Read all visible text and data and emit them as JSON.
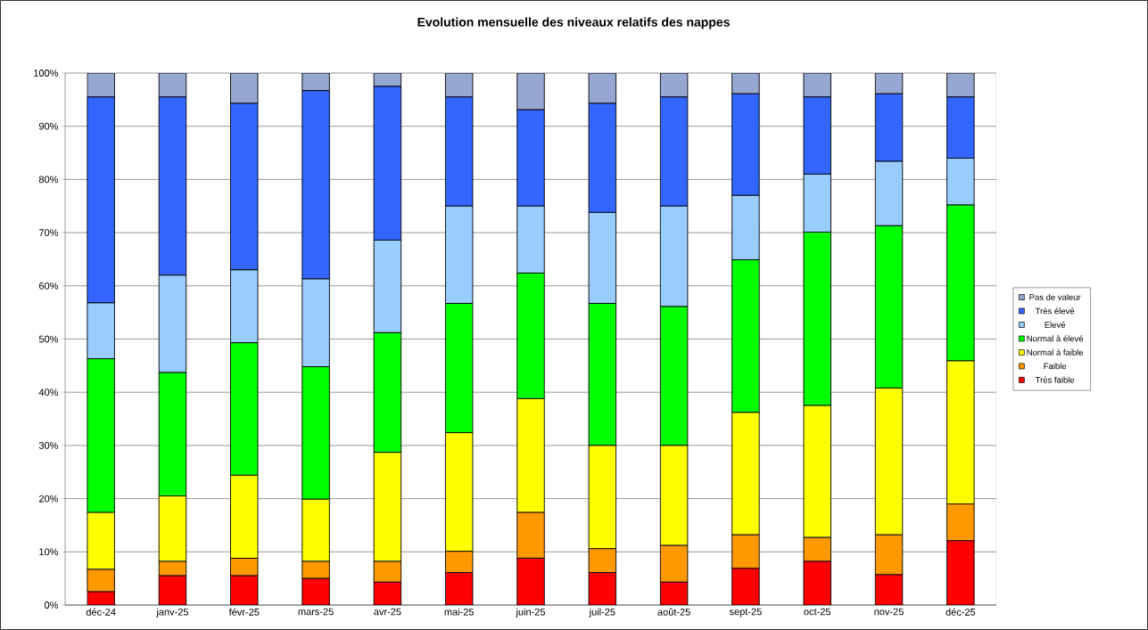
{
  "chart_data": {
    "type": "bar",
    "stacked": true,
    "title": "Evolution mensuelle des niveaux relatifs des nappes",
    "categories": [
      "déc-24",
      "janv-25",
      "févr-25",
      "mars-25",
      "avr-25",
      "mai-25",
      "juin-25",
      "juil-25",
      "août-25",
      "sept-25",
      "oct-25",
      "nov-25",
      "déc-25"
    ],
    "series": [
      {
        "name": "Très faible",
        "color": "#ff0000",
        "values": [
          2.5,
          5.5,
          5.5,
          5.0,
          4.3,
          6.1,
          8.8,
          6.1,
          4.3,
          6.9,
          8.2,
          5.7,
          12.1
        ]
      },
      {
        "name": "Faible",
        "color": "#ff9900",
        "values": [
          4.2,
          2.7,
          3.3,
          3.2,
          3.9,
          4.0,
          8.6,
          4.5,
          6.9,
          6.3,
          4.5,
          7.5,
          6.9
        ]
      },
      {
        "name": "Normal à faible",
        "color": "#ffff00",
        "values": [
          10.7,
          12.3,
          15.6,
          11.7,
          20.5,
          22.3,
          21.4,
          19.4,
          18.8,
          23.0,
          24.8,
          27.6,
          26.9
        ]
      },
      {
        "name": "Normal à élevé",
        "color": "#00ff00",
        "values": [
          28.9,
          23.2,
          24.9,
          24.9,
          22.5,
          24.3,
          23.6,
          26.7,
          26.1,
          28.7,
          32.6,
          30.5,
          29.3
        ]
      },
      {
        "name": "Elevé",
        "color": "#99ccff",
        "values": [
          10.5,
          18.3,
          13.7,
          16.5,
          17.4,
          18.3,
          12.6,
          17.1,
          18.9,
          12.1,
          10.9,
          12.1,
          8.8
        ]
      },
      {
        "name": "Très élevé",
        "color": "#3366ff",
        "values": [
          38.7,
          33.5,
          31.3,
          35.4,
          28.9,
          20.5,
          18.1,
          20.5,
          20.5,
          19.1,
          14.5,
          12.7,
          11.5
        ]
      },
      {
        "name": "Pas de valeur",
        "color": "#96a8d2",
        "values": [
          4.5,
          4.5,
          5.7,
          3.3,
          2.5,
          4.5,
          6.9,
          5.7,
          4.5,
          3.9,
          4.5,
          3.9,
          4.5
        ]
      }
    ],
    "ylim": [
      0,
      100
    ],
    "yticks": [
      {
        "value": 0,
        "label": "0%"
      },
      {
        "value": 10,
        "label": "10%"
      },
      {
        "value": 20,
        "label": "20%"
      },
      {
        "value": 30,
        "label": "30%"
      },
      {
        "value": 40,
        "label": "40%"
      },
      {
        "value": 50,
        "label": "50%"
      },
      {
        "value": 60,
        "label": "60%"
      },
      {
        "value": 70,
        "label": "70%"
      },
      {
        "value": 80,
        "label": "80%"
      },
      {
        "value": 90,
        "label": "90%"
      },
      {
        "value": 100,
        "label": "100%"
      }
    ],
    "grid": "y",
    "legend": "right"
  }
}
